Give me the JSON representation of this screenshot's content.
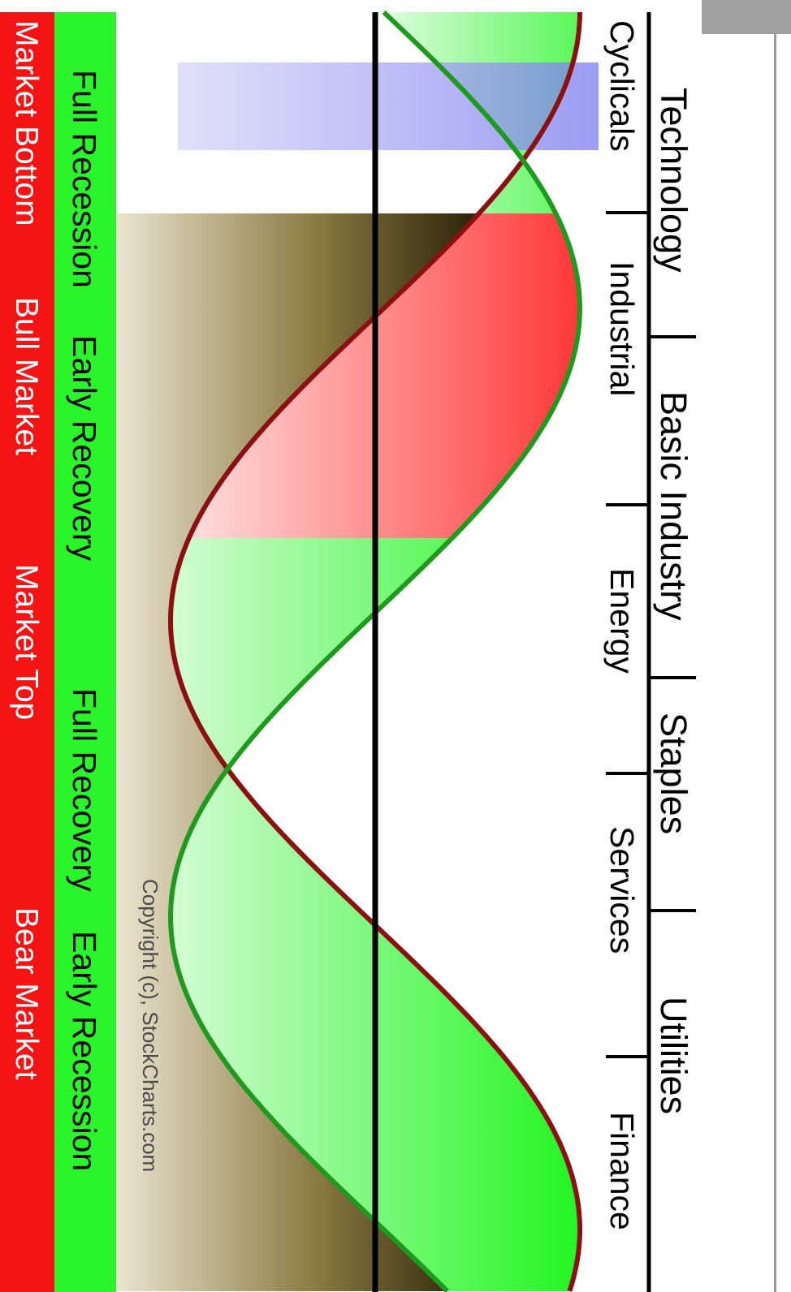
{
  "sectors_upper": [
    "Technology",
    "Basic Industry",
    "Staples",
    "Utilities"
  ],
  "sectors_lower": [
    "Cyclicals",
    "Industrial",
    "Energy",
    "Services",
    "Finance"
  ],
  "economy_phases": [
    "Full Recession",
    "Early Recovery",
    "Full Recovery",
    "Early Recession"
  ],
  "market_phases": [
    "Market Bottom",
    "Bull Market",
    "Market Top",
    "Bear Market"
  ],
  "copyright": "Copyright (c), StockCharts.com",
  "colors": {
    "economy_band": "#2af52a",
    "market_band": "#f51414",
    "market_curve": "#8b1010",
    "economy_curve": "#1f9a1f",
    "highlight": "#7b7bf0"
  }
}
